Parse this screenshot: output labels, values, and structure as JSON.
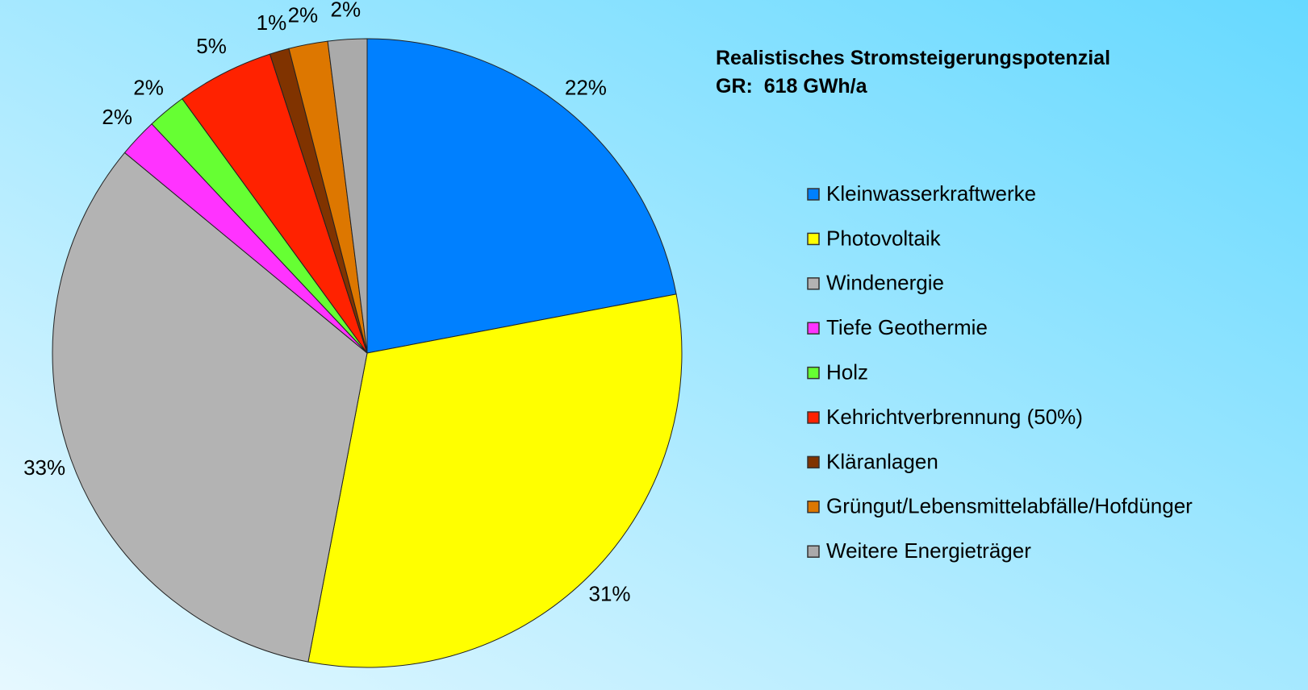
{
  "chart_data": {
    "type": "pie",
    "title": "Realistisches Stromsteigerungspotenzial",
    "subtitle": "GR:  618 GWh/a",
    "categories": [
      "Kleinwasserkraftwerke",
      "Photovoltaik",
      "Windenergie",
      "Tiefe Geothermie",
      "Holz",
      "Kehrichtverbrennung (50%)",
      "Kläranlagen",
      "Grüngut/Lebensmittelabfälle/Hofdünger",
      "Weitere Energieträger"
    ],
    "values": [
      22,
      31,
      33,
      2,
      2,
      5,
      1,
      2,
      2
    ],
    "value_labels": [
      "22%",
      "31%",
      "33%",
      "2%",
      "2%",
      "5%",
      "1%",
      "2%",
      "2%"
    ],
    "colors": [
      "#0080ff",
      "#ffff00",
      "#b3b3b3",
      "#ff33ff",
      "#66ff33",
      "#ff2200",
      "#803300",
      "#dd7700",
      "#aaaaaa"
    ],
    "legend": "right"
  }
}
